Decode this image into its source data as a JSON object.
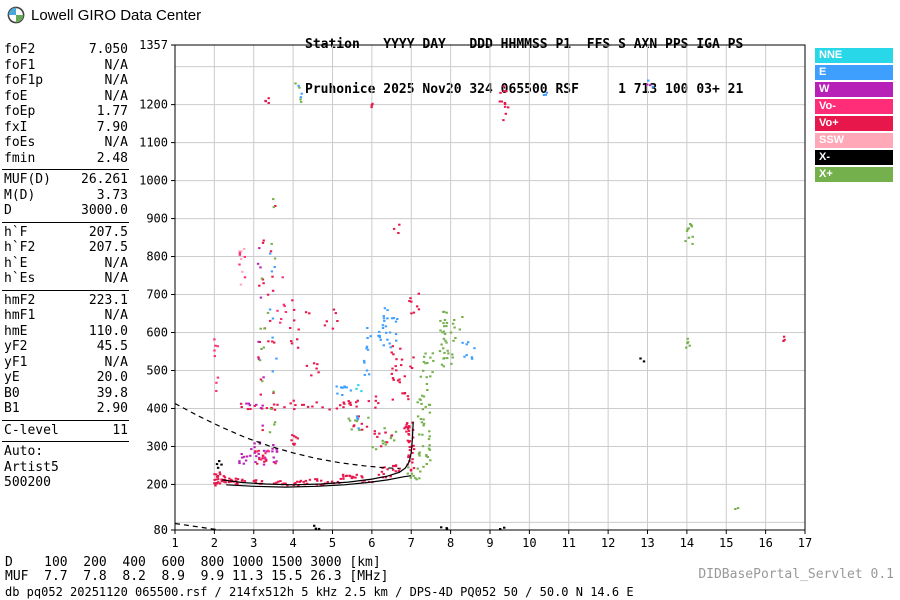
{
  "header": {
    "title": "Lowell GIRO Data Center",
    "station_line1": "Station   YYYY DAY   DDD HHMMSS P1  FFS S AXN PPS IGA PS",
    "station_line2": "Pruhonice 2025 Nov20 324 065500 RSF     1 713 100 03+ 21"
  },
  "panel": {
    "groups": [
      {
        "rows": [
          {
            "label": "foF2",
            "value": "7.050"
          },
          {
            "label": "foF1",
            "value": "N/A"
          },
          {
            "label": "foF1p",
            "value": "N/A"
          },
          {
            "label": "foE",
            "value": "N/A"
          },
          {
            "label": "foEp",
            "value": "1.77"
          },
          {
            "label": "fxI",
            "value": "7.90"
          },
          {
            "label": "foEs",
            "value": "N/A"
          },
          {
            "label": "fmin",
            "value": "2.48"
          }
        ]
      },
      {
        "rows": [
          {
            "label": "MUF(D)",
            "value": "26.261"
          },
          {
            "label": "M(D)",
            "value": "3.73"
          },
          {
            "label": "D",
            "value": "3000.0"
          }
        ]
      },
      {
        "rows": [
          {
            "label": "h`F",
            "value": "207.5"
          },
          {
            "label": "h`F2",
            "value": "207.5"
          },
          {
            "label": "h`E",
            "value": "N/A"
          },
          {
            "label": "h`Es",
            "value": "N/A"
          }
        ]
      },
      {
        "rows": [
          {
            "label": "hmF2",
            "value": "223.1"
          },
          {
            "label": "hmF1",
            "value": "N/A"
          },
          {
            "label": "hmE",
            "value": "110.0"
          },
          {
            "label": "yF2",
            "value": "45.5"
          },
          {
            "label": "yF1",
            "value": "N/A"
          },
          {
            "label": "yE",
            "value": "20.0"
          },
          {
            "label": "B0",
            "value": "39.8"
          },
          {
            "label": "B1",
            "value": "2.90"
          }
        ]
      },
      {
        "rows": [
          {
            "label": "C-level",
            "value": "11"
          }
        ]
      },
      {
        "rows": [
          {
            "label": "Auto:",
            "value": ""
          },
          {
            "label": "Artist5",
            "value": ""
          },
          {
            "label": "500200",
            "value": ""
          }
        ]
      }
    ]
  },
  "legend": [
    {
      "label": "NNE",
      "color": "#29d8e8"
    },
    {
      "label": "E",
      "color": "#3e9fff"
    },
    {
      "label": "W",
      "color": "#b821b8"
    },
    {
      "label": "Vo-",
      "color": "#ff2d78"
    },
    {
      "label": "Vo+",
      "color": "#e8174b"
    },
    {
      "label": "SSW",
      "color": "#ffa8b8"
    },
    {
      "label": "X-",
      "color": "#000000"
    },
    {
      "label": "X+",
      "color": "#74b04b"
    }
  ],
  "footer": {
    "d_line": "D    100  200  400  600  800 1000 1500 3000 [km]",
    "muf_line": "MUF  7.7  7.8  8.2  8.9  9.9 11.3 15.5 26.3 [MHz]",
    "db_line": "db pq052 20251120 065500.rsf / 214fx512h 5 kHz 2.5 km / DPS-4D PQ052 50 / 50.0 N 14.6 E",
    "servlet": "DIDBasePortal_Servlet 0.1"
  },
  "chart_data": {
    "type": "scatter",
    "title": "Pruhonice ionogram 2025 Nov20 065500",
    "xlabel": "[MHz]",
    "ylabel": "[km]",
    "xlim": [
      1,
      17
    ],
    "ylim": [
      80,
      1357
    ],
    "grid": true,
    "x_ticks": [
      1,
      2,
      3,
      4,
      5,
      6,
      7,
      8,
      9,
      10,
      11,
      12,
      13,
      14,
      15,
      16,
      17
    ],
    "y_ticks": [
      80,
      200,
      300,
      400,
      500,
      600,
      700,
      800,
      900,
      1000,
      1100,
      1200,
      1357
    ],
    "muf_table": {
      "D_km": [
        100,
        200,
        400,
        600,
        800,
        1000,
        1500,
        3000
      ],
      "MUF_MHz": [
        7.7,
        7.8,
        8.2,
        8.9,
        9.9,
        11.3,
        15.5,
        26.3
      ]
    },
    "key_values": {
      "foF2": 7.05,
      "fxI": 7.9,
      "fmin": 2.48,
      "hmF2": 223.1,
      "hmE": 110.0,
      "MUF_3000": 26.261
    },
    "clusters": [
      {
        "s": "Vo+",
        "x": [
          2.0,
          2.3
        ],
        "y": [
          195,
          232
        ],
        "n": 26
      },
      {
        "s": "X-",
        "x": [
          2.0,
          2.2
        ],
        "y": [
          240,
          262
        ],
        "n": 4
      },
      {
        "s": "Vo+",
        "x": [
          2.3,
          3.2
        ],
        "y": [
          200,
          216
        ],
        "n": 20
      },
      {
        "s": "Vo+",
        "x": [
          3.2,
          4.2
        ],
        "y": [
          196,
          210
        ],
        "n": 18
      },
      {
        "s": "Vo+",
        "x": [
          4.2,
          5.2
        ],
        "y": [
          198,
          214
        ],
        "n": 18
      },
      {
        "s": "Vo+",
        "x": [
          5.2,
          6.2
        ],
        "y": [
          205,
          226
        ],
        "n": 20
      },
      {
        "s": "Vo+",
        "x": [
          6.2,
          6.8
        ],
        "y": [
          215,
          252
        ],
        "n": 16
      },
      {
        "s": "Vo+",
        "x": [
          6.82,
          7.08
        ],
        "y": [
          235,
          365
        ],
        "n": 34
      },
      {
        "s": "X+",
        "x": [
          6.9,
          7.25
        ],
        "y": [
          212,
          245
        ],
        "n": 10
      },
      {
        "s": "X+",
        "x": [
          7.15,
          7.5
        ],
        "y": [
          245,
          485
        ],
        "n": 40
      },
      {
        "s": "Vo+",
        "x": [
          2.6,
          4.0
        ],
        "y": [
          394,
          414
        ],
        "n": 12
      },
      {
        "s": "W",
        "x": [
          2.6,
          3.4
        ],
        "y": [
          397,
          413
        ],
        "n": 6
      },
      {
        "s": "Vo+",
        "x": [
          4.0,
          5.3
        ],
        "y": [
          395,
          422
        ],
        "n": 12
      },
      {
        "s": "Vo+",
        "x": [
          5.3,
          6.3
        ],
        "y": [
          402,
          442
        ],
        "n": 9
      },
      {
        "s": "Vo+",
        "x": [
          6.5,
          7.1
        ],
        "y": [
          420,
          565
        ],
        "n": 26
      },
      {
        "s": "X+",
        "x": [
          7.3,
          7.65
        ],
        "y": [
          488,
          562
        ],
        "n": 10
      },
      {
        "s": "X+",
        "x": [
          7.72,
          8.08
        ],
        "y": [
          478,
          655
        ],
        "n": 32
      },
      {
        "s": "X+",
        "x": [
          8.05,
          8.3
        ],
        "y": [
          555,
          645
        ],
        "n": 6
      },
      {
        "s": "Vo+",
        "x": [
          4.3,
          5.2
        ],
        "y": [
          608,
          662
        ],
        "n": 8
      },
      {
        "s": "E",
        "x": [
          5.8,
          6.6
        ],
        "y": [
          558,
          622
        ],
        "n": 10
      },
      {
        "s": "E",
        "x": [
          6.3,
          6.75
        ],
        "y": [
          618,
          668
        ],
        "n": 10
      },
      {
        "s": "Vo+",
        "x": [
          6.9,
          7.2
        ],
        "y": [
          648,
          712
        ],
        "n": 8
      },
      {
        "s": "Vo-",
        "x": [
          2.0,
          2.12
        ],
        "y": [
          438,
          582
        ],
        "n": 8
      },
      {
        "s": "SSW",
        "x": [
          2.6,
          2.78
        ],
        "y": [
          688,
          832
        ],
        "n": 6
      },
      {
        "s": "Vo-",
        "x": [
          2.62,
          2.8
        ],
        "y": [
          700,
          820
        ],
        "n": 5
      },
      {
        "s": "W",
        "x": [
          2.6,
          2.85
        ],
        "y": [
          252,
          306
        ],
        "n": 8
      },
      {
        "s": "W",
        "x": [
          2.9,
          3.6
        ],
        "y": [
          248,
          312
        ],
        "n": 26
      },
      {
        "s": "Vo+",
        "x": [
          2.95,
          3.6
        ],
        "y": [
          252,
          308
        ],
        "n": 10
      },
      {
        "s": "Vo-",
        "x": [
          3.0,
          3.5
        ],
        "y": [
          255,
          300
        ],
        "n": 6
      },
      {
        "s": "Vo+",
        "x": [
          3.1,
          3.3
        ],
        "y": [
          320,
          870
        ],
        "n": 11
      },
      {
        "s": "W",
        "x": [
          3.1,
          3.3
        ],
        "y": [
          330,
          860
        ],
        "n": 8
      },
      {
        "s": "X+",
        "x": [
          3.12,
          3.3
        ],
        "y": [
          360,
          900
        ],
        "n": 7
      },
      {
        "s": "Vo+",
        "x": [
          3.25,
          3.42
        ],
        "y": [
          1185,
          1218
        ],
        "n": 4
      },
      {
        "s": "Vo+",
        "x": [
          3.35,
          3.56
        ],
        "y": [
          300,
          980
        ],
        "n": 12
      },
      {
        "s": "X+",
        "x": [
          3.36,
          3.56
        ],
        "y": [
          330,
          960
        ],
        "n": 10
      },
      {
        "s": "E",
        "x": [
          3.38,
          3.58
        ],
        "y": [
          380,
          900
        ],
        "n": 8
      },
      {
        "s": "Vo-",
        "x": [
          3.6,
          3.82
        ],
        "y": [
          600,
          800
        ],
        "n": 7
      },
      {
        "s": "Vo+",
        "x": [
          3.9,
          4.15
        ],
        "y": [
          540,
          700
        ],
        "n": 9
      },
      {
        "s": "Vo+",
        "x": [
          3.9,
          4.15
        ],
        "y": [
          298,
          330
        ],
        "n": 8
      },
      {
        "s": "X+",
        "x": [
          4.05,
          4.22
        ],
        "y": [
          1198,
          1262
        ],
        "n": 4
      },
      {
        "s": "E",
        "x": [
          4.08,
          4.25
        ],
        "y": [
          1210,
          1268
        ],
        "n": 3
      },
      {
        "s": "Vo+",
        "x": [
          4.3,
          4.7
        ],
        "y": [
          478,
          522
        ],
        "n": 6
      },
      {
        "s": "E",
        "x": [
          5.1,
          5.5
        ],
        "y": [
          428,
          472
        ],
        "n": 9
      },
      {
        "s": "NNE",
        "x": [
          5.55,
          5.75
        ],
        "y": [
          440,
          462
        ],
        "n": 3
      },
      {
        "s": "Vo+",
        "x": [
          5.15,
          5.5
        ],
        "y": [
          408,
          432
        ],
        "n": 6
      },
      {
        "s": "X+",
        "x": [
          5.4,
          5.95
        ],
        "y": [
          338,
          388
        ],
        "n": 8
      },
      {
        "s": "Vo+",
        "x": [
          5.45,
          5.95
        ],
        "y": [
          342,
          384
        ],
        "n": 6
      },
      {
        "s": "E",
        "x": [
          5.5,
          5.9
        ],
        "y": [
          345,
          380
        ],
        "n": 4
      },
      {
        "s": "E",
        "x": [
          5.75,
          5.98
        ],
        "y": [
          488,
          562
        ],
        "n": 7
      },
      {
        "s": "X+",
        "x": [
          6.0,
          6.62
        ],
        "y": [
          290,
          352
        ],
        "n": 12
      },
      {
        "s": "Vo+",
        "x": [
          6.05,
          6.6
        ],
        "y": [
          295,
          350
        ],
        "n": 8
      },
      {
        "s": "E",
        "x": [
          6.1,
          6.7
        ],
        "y": [
          556,
          626
        ],
        "n": 10
      },
      {
        "s": "Vo+",
        "x": [
          6.55,
          6.72
        ],
        "y": [
          858,
          892
        ],
        "n": 3
      },
      {
        "s": "Vo+",
        "x": [
          5.88,
          6.02
        ],
        "y": [
          1182,
          1212
        ],
        "n": 3
      },
      {
        "s": "E",
        "x": [
          8.3,
          8.62
        ],
        "y": [
          528,
          582
        ],
        "n": 8
      },
      {
        "s": "Vo+",
        "x": [
          9.24,
          9.5
        ],
        "y": [
          1138,
          1266
        ],
        "n": 12
      },
      {
        "s": "E",
        "x": [
          10.3,
          10.45
        ],
        "y": [
          1222,
          1248
        ],
        "n": 3
      },
      {
        "s": "W",
        "x": [
          12.95,
          13.15
        ],
        "y": [
          1242,
          1266
        ],
        "n": 2
      },
      {
        "s": "E",
        "x": [
          13.0,
          13.18
        ],
        "y": [
          1246,
          1268
        ],
        "n": 2
      },
      {
        "s": "X-",
        "x": [
          12.78,
          12.92
        ],
        "y": [
          518,
          538
        ],
        "n": 2
      },
      {
        "s": "X+",
        "x": [
          13.95,
          14.15
        ],
        "y": [
          832,
          886
        ],
        "n": 10
      },
      {
        "s": "X+",
        "x": [
          13.98,
          14.12
        ],
        "y": [
          552,
          592
        ],
        "n": 5
      },
      {
        "s": "Vo+",
        "x": [
          16.38,
          16.52
        ],
        "y": [
          572,
          596
        ],
        "n": 3
      },
      {
        "s": "X-",
        "x": [
          4.52,
          4.68
        ],
        "y": [
          82,
          92
        ],
        "n": 3
      },
      {
        "s": "X-",
        "x": [
          7.75,
          7.98
        ],
        "y": [
          82,
          92
        ],
        "n": 3
      },
      {
        "s": "X-",
        "x": [
          9.25,
          9.38
        ],
        "y": [
          82,
          90
        ],
        "n": 2
      },
      {
        "s": "X+",
        "x": [
          15.15,
          15.3
        ],
        "y": [
          122,
          142
        ],
        "n": 2
      }
    ],
    "curves": [
      {
        "name": "muf-transmission-curve",
        "style": "dashed",
        "points": [
          [
            1.0,
            413
          ],
          [
            1.6,
            380
          ],
          [
            2.2,
            350
          ],
          [
            2.8,
            323
          ],
          [
            3.4,
            301
          ],
          [
            4.0,
            283
          ],
          [
            4.6,
            268
          ],
          [
            5.2,
            257
          ],
          [
            5.8,
            249
          ],
          [
            6.3,
            244
          ],
          [
            6.7,
            242
          ]
        ]
      },
      {
        "name": "sub-fmin-extrapolation",
        "style": "dashed",
        "points": [
          [
            1.0,
            97
          ],
          [
            1.4,
            91
          ],
          [
            1.8,
            85
          ],
          [
            2.15,
            80
          ]
        ]
      },
      {
        "name": "fitted-o-trace",
        "style": "solid",
        "points": [
          [
            2.2,
            212
          ],
          [
            2.7,
            205
          ],
          [
            3.3,
            201
          ],
          [
            4.0,
            199
          ],
          [
            4.7,
            201
          ],
          [
            5.4,
            206
          ],
          [
            6.0,
            214
          ],
          [
            6.4,
            222
          ],
          [
            6.7,
            232
          ],
          [
            6.85,
            243
          ],
          [
            6.95,
            260
          ],
          [
            7.0,
            285
          ],
          [
            7.03,
            320
          ],
          [
            7.05,
            365
          ]
        ]
      },
      {
        "name": "true-height-profile",
        "style": "solid",
        "points": [
          [
            2.3,
            199
          ],
          [
            3.0,
            195
          ],
          [
            3.8,
            193
          ],
          [
            4.6,
            195
          ],
          [
            5.3,
            199
          ],
          [
            5.9,
            205
          ],
          [
            6.4,
            212
          ],
          [
            6.8,
            220
          ],
          [
            7.0,
            223
          ]
        ]
      }
    ]
  }
}
